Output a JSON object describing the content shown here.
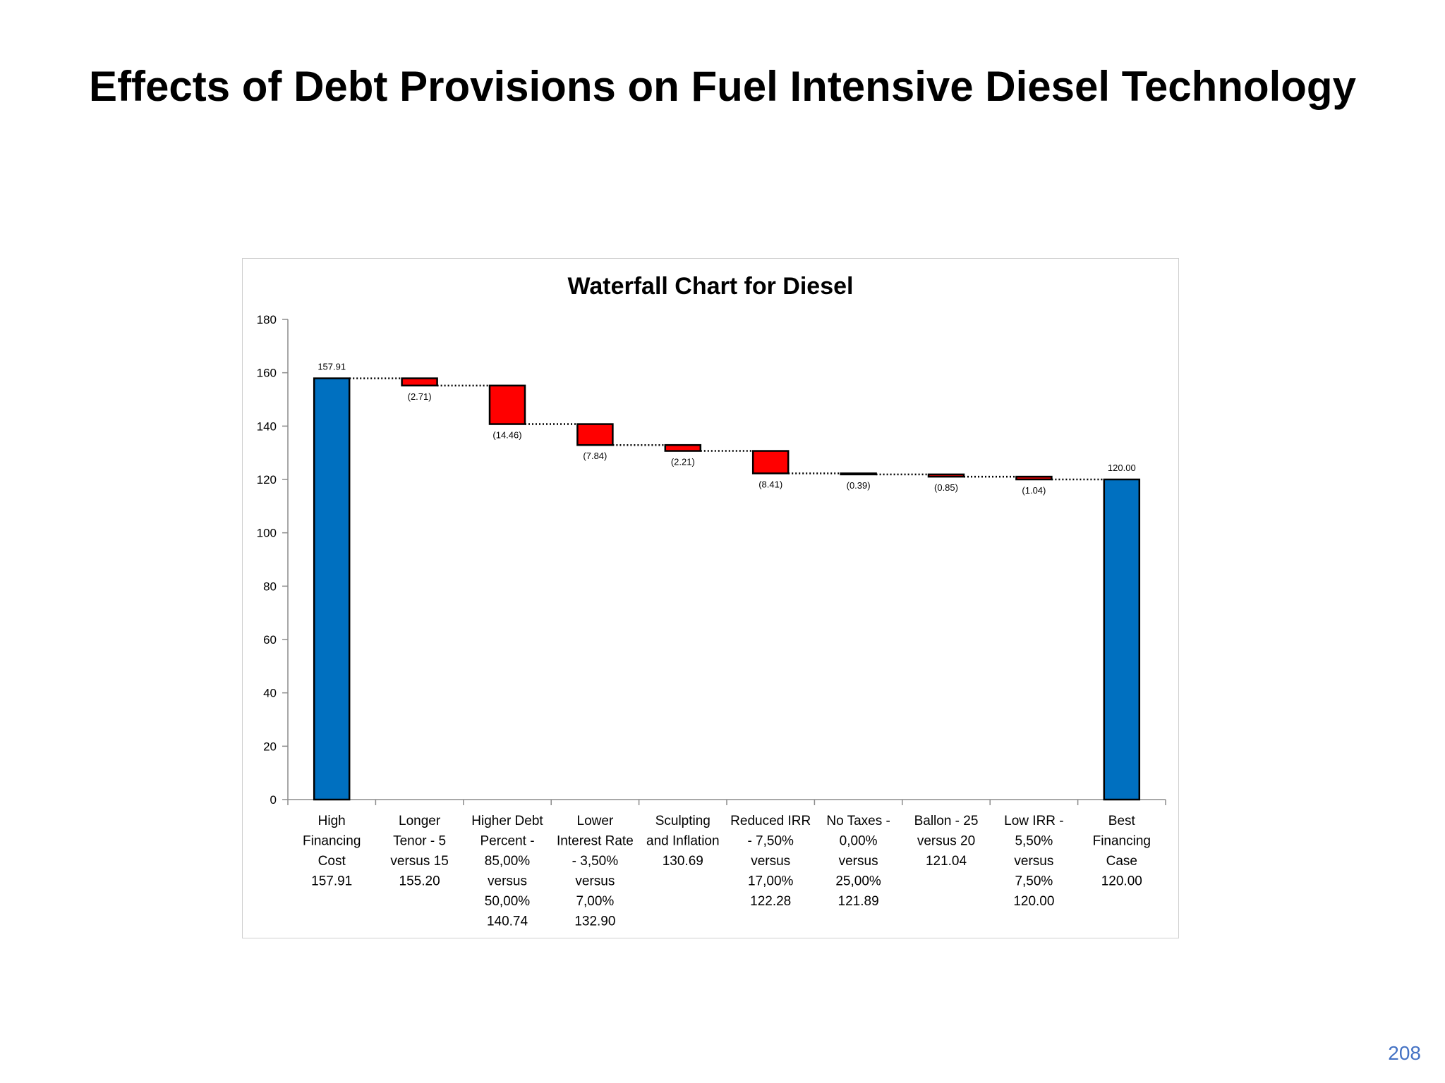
{
  "slide": {
    "title": "Effects of Debt Provisions on Fuel Intensive Diesel Technology",
    "page_number": "208"
  },
  "colors": {
    "total_bar": "#0070C0",
    "decrease_bar": "#FF0000",
    "outline": "#000000"
  },
  "chart_data": {
    "type": "bar",
    "subtype": "waterfall",
    "title": "Waterfall Chart for Diesel",
    "xlabel": "",
    "ylabel": "",
    "ylim": [
      0,
      180
    ],
    "yticks": [
      "0",
      "20",
      "40",
      "60",
      "80",
      "100",
      "120",
      "140",
      "160",
      "180"
    ],
    "grid": false,
    "legend": "none",
    "categories": [
      {
        "lines": [
          "High",
          "Financing",
          "Cost",
          "157.91"
        ]
      },
      {
        "lines": [
          "Longer",
          "Tenor - 5",
          "versus 15",
          "155.20"
        ]
      },
      {
        "lines": [
          "Higher Debt",
          "Percent -",
          "85,00%",
          "versus",
          "50,00%",
          "140.74"
        ]
      },
      {
        "lines": [
          "Lower",
          "Interest Rate",
          "- 3,50%",
          "versus",
          "7,00%",
          "132.90"
        ]
      },
      {
        "lines": [
          "Sculpting",
          "and Inflation",
          "130.69"
        ]
      },
      {
        "lines": [
          "Reduced IRR",
          "- 7,50%",
          "versus",
          "17,00%",
          "122.28"
        ]
      },
      {
        "lines": [
          "No Taxes -",
          "0,00%",
          "versus",
          "25,00%",
          "121.89"
        ]
      },
      {
        "lines": [
          "Ballon - 25",
          "versus 20",
          "121.04"
        ]
      },
      {
        "lines": [
          "Low IRR -",
          "5,50%",
          "versus",
          "7,50%",
          "120.00"
        ]
      },
      {
        "lines": [
          "Best",
          "Financing",
          "Case",
          "120.00"
        ]
      }
    ],
    "bars": [
      {
        "kind": "total",
        "start": 0,
        "end": 157.91,
        "label": "157.91"
      },
      {
        "kind": "decrease",
        "start": 157.91,
        "end": 155.2,
        "label": "(2.71)"
      },
      {
        "kind": "decrease",
        "start": 155.2,
        "end": 140.74,
        "label": "(14.46)"
      },
      {
        "kind": "decrease",
        "start": 140.74,
        "end": 132.9,
        "label": "(7.84)"
      },
      {
        "kind": "decrease",
        "start": 132.9,
        "end": 130.69,
        "label": "(2.21)"
      },
      {
        "kind": "decrease",
        "start": 130.69,
        "end": 122.28,
        "label": "(8.41)"
      },
      {
        "kind": "decrease",
        "start": 122.28,
        "end": 121.89,
        "label": "(0.39)"
      },
      {
        "kind": "decrease",
        "start": 121.89,
        "end": 121.04,
        "label": "(0.85)"
      },
      {
        "kind": "decrease",
        "start": 121.04,
        "end": 120.0,
        "label": "(1.04)"
      },
      {
        "kind": "total",
        "start": 0,
        "end": 120.0,
        "label": "120.00"
      }
    ]
  }
}
